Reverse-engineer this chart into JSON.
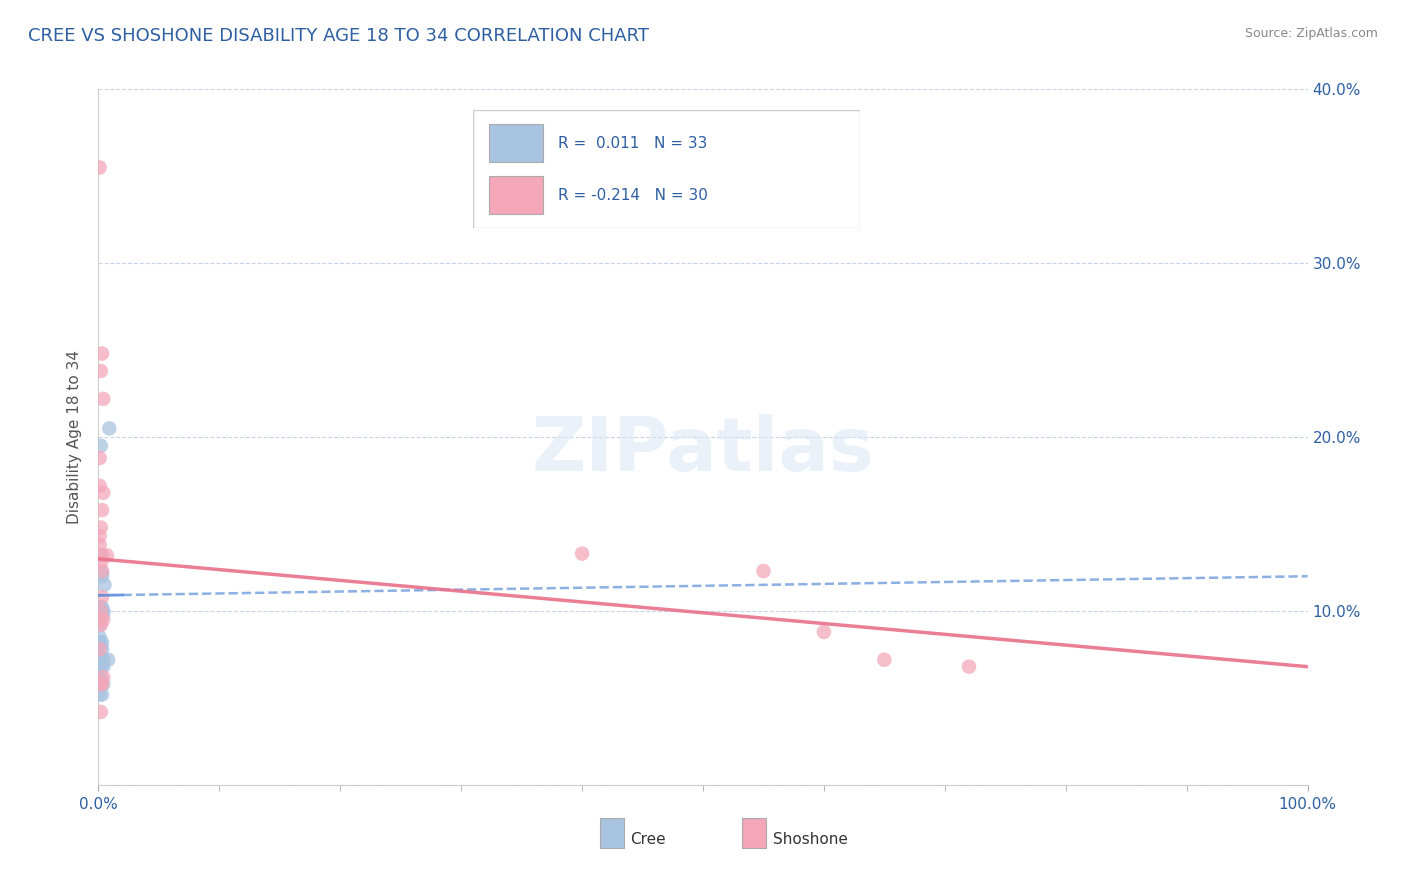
{
  "title": "CREE VS SHOSHONE DISABILITY AGE 18 TO 34 CORRELATION CHART",
  "source": "Source: ZipAtlas.com",
  "ylabel": "Disability Age 18 to 34",
  "xlim": [
    0,
    1.0
  ],
  "ylim": [
    0,
    0.4
  ],
  "cree_color": "#a8c4e0",
  "shoshone_color": "#f4a7b9",
  "cree_line_color": "#5b8dd9",
  "shoshone_line_color": "#e8708a",
  "cree_R": 0.011,
  "cree_N": 33,
  "shoshone_R": -0.214,
  "shoshone_N": 30,
  "background_color": "#ffffff",
  "grid_color": "#c8d4e8",
  "title_color": "#2e5fa3",
  "cree_line_x0": 0.0,
  "cree_line_y0": 0.109,
  "cree_line_x1": 1.0,
  "cree_line_y1": 0.12,
  "shoshone_line_x0": 0.0,
  "shoshone_line_y0": 0.13,
  "shoshone_line_x1": 1.0,
  "shoshone_line_y1": 0.068,
  "cree_scatter_x": [
    0.002,
    0.005,
    0.001,
    0.003,
    0.004,
    0.001,
    0.002,
    0.003,
    0.004,
    0.001,
    0.001,
    0.002,
    0.003,
    0.002,
    0.001,
    0.001,
    0.001,
    0.008,
    0.009,
    0.003,
    0.002,
    0.001,
    0.002,
    0.004,
    0.001,
    0.003,
    0.002,
    0.003,
    0.004,
    0.002,
    0.002,
    0.001,
    0.004
  ],
  "cree_scatter_y": [
    0.195,
    0.115,
    0.085,
    0.12,
    0.1,
    0.082,
    0.102,
    0.078,
    0.098,
    0.092,
    0.052,
    0.068,
    0.122,
    0.1,
    0.082,
    0.096,
    0.078,
    0.072,
    0.205,
    0.102,
    0.132,
    0.072,
    0.062,
    0.068,
    0.058,
    0.082,
    0.072,
    0.052,
    0.072,
    0.068,
    0.102,
    0.062,
    0.058
  ],
  "shoshone_scatter_x": [
    0.001,
    0.003,
    0.002,
    0.004,
    0.001,
    0.001,
    0.003,
    0.002,
    0.001,
    0.003,
    0.002,
    0.007,
    0.004,
    0.001,
    0.003,
    0.4,
    0.55,
    0.6,
    0.65,
    0.72,
    0.002,
    0.003,
    0.004,
    0.001,
    0.002,
    0.001,
    0.003,
    0.001,
    0.004,
    0.002
  ],
  "shoshone_scatter_y": [
    0.355,
    0.248,
    0.238,
    0.222,
    0.188,
    0.172,
    0.158,
    0.148,
    0.138,
    0.132,
    0.128,
    0.132,
    0.168,
    0.143,
    0.123,
    0.133,
    0.123,
    0.088,
    0.072,
    0.068,
    0.1,
    0.108,
    0.095,
    0.095,
    0.092,
    0.058,
    0.058,
    0.078,
    0.062,
    0.042
  ]
}
